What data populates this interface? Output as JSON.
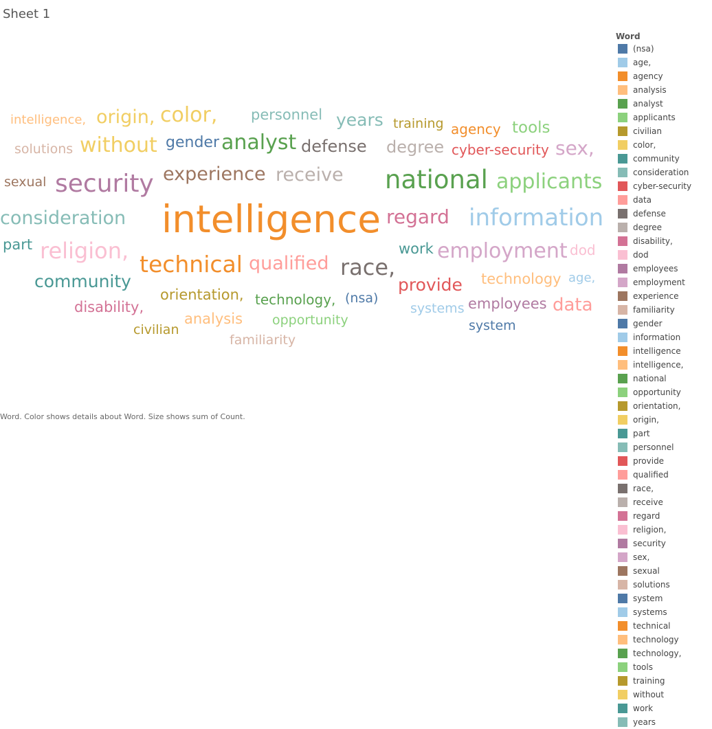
{
  "sheet_title": "Sheet 1",
  "caption": "Word.  Color shows details about Word.  Size shows sum of Count.",
  "chart_data": {
    "type": "word_cloud",
    "legend": {
      "title": "Word",
      "placement": "right",
      "items": [
        {
          "label": "(nsa)",
          "color": "#4e79a7"
        },
        {
          "label": "age,",
          "color": "#a0cbe8"
        },
        {
          "label": "agency",
          "color": "#f28e2b"
        },
        {
          "label": "analysis",
          "color": "#ffbe7d"
        },
        {
          "label": "analyst",
          "color": "#59a14f"
        },
        {
          "label": "applicants",
          "color": "#8cd17d"
        },
        {
          "label": "civilian",
          "color": "#b6992d"
        },
        {
          "label": "color,",
          "color": "#f1ce63"
        },
        {
          "label": "community",
          "color": "#499894"
        },
        {
          "label": "consideration",
          "color": "#86bcb6"
        },
        {
          "label": "cyber-security",
          "color": "#e15759"
        },
        {
          "label": "data",
          "color": "#ff9d9a"
        },
        {
          "label": "defense",
          "color": "#79706e"
        },
        {
          "label": "degree",
          "color": "#bab0ac"
        },
        {
          "label": "disability,",
          "color": "#d37295"
        },
        {
          "label": "dod",
          "color": "#fabfd2"
        },
        {
          "label": "employees",
          "color": "#b07aa1"
        },
        {
          "label": "employment",
          "color": "#d4a6c8"
        },
        {
          "label": "experience",
          "color": "#9d7660"
        },
        {
          "label": "familiarity",
          "color": "#d7b5a6"
        },
        {
          "label": "gender",
          "color": "#4e79a7"
        },
        {
          "label": "information",
          "color": "#a0cbe8"
        },
        {
          "label": "intelligence",
          "color": "#f28e2b"
        },
        {
          "label": "intelligence,",
          "color": "#ffbe7d"
        },
        {
          "label": "national",
          "color": "#59a14f"
        },
        {
          "label": "opportunity",
          "color": "#8cd17d"
        },
        {
          "label": "orientation,",
          "color": "#b6992d"
        },
        {
          "label": "origin,",
          "color": "#f1ce63"
        },
        {
          "label": "part",
          "color": "#499894"
        },
        {
          "label": "personnel",
          "color": "#86bcb6"
        },
        {
          "label": "provide",
          "color": "#e15759"
        },
        {
          "label": "qualified",
          "color": "#ff9d9a"
        },
        {
          "label": "race,",
          "color": "#79706e"
        },
        {
          "label": "receive",
          "color": "#bab0ac"
        },
        {
          "label": "regard",
          "color": "#d37295"
        },
        {
          "label": "religion,",
          "color": "#fabfd2"
        },
        {
          "label": "security",
          "color": "#b07aa1"
        },
        {
          "label": "sex,",
          "color": "#d4a6c8"
        },
        {
          "label": "sexual",
          "color": "#9d7660"
        },
        {
          "label": "solutions",
          "color": "#d7b5a6"
        },
        {
          "label": "system",
          "color": "#4e79a7"
        },
        {
          "label": "systems",
          "color": "#a0cbe8"
        },
        {
          "label": "technical",
          "color": "#f28e2b"
        },
        {
          "label": "technology",
          "color": "#ffbe7d"
        },
        {
          "label": "technology,",
          "color": "#59a14f"
        },
        {
          "label": "tools",
          "color": "#8cd17d"
        },
        {
          "label": "training",
          "color": "#b6992d"
        },
        {
          "label": "without",
          "color": "#f1ce63"
        },
        {
          "label": "work",
          "color": "#499894"
        },
        {
          "label": "years",
          "color": "#86bcb6"
        }
      ]
    },
    "words": [
      {
        "text": "intelligence",
        "color": "#f28e2b"
      },
      {
        "text": "national",
        "color": "#59a14f"
      },
      {
        "text": "information",
        "color": "#a0cbe8"
      },
      {
        "text": "security",
        "color": "#b07aa1"
      },
      {
        "text": "applicants",
        "color": "#8cd17d"
      },
      {
        "text": "technical",
        "color": "#f28e2b"
      },
      {
        "text": "employment",
        "color": "#d4a6c8"
      },
      {
        "text": "race,",
        "color": "#79706e"
      },
      {
        "text": "religion,",
        "color": "#fabfd2"
      },
      {
        "text": "consideration",
        "color": "#86bcb6"
      },
      {
        "text": "analyst",
        "color": "#59a14f"
      },
      {
        "text": "regard",
        "color": "#d37295"
      },
      {
        "text": "without",
        "color": "#f1ce63"
      },
      {
        "text": "color,",
        "color": "#f1ce63"
      },
      {
        "text": "sex,",
        "color": "#d4a6c8"
      },
      {
        "text": "qualified",
        "color": "#ff9d9a"
      },
      {
        "text": "experience",
        "color": "#9d7660"
      },
      {
        "text": "receive",
        "color": "#bab0ac"
      },
      {
        "text": "community",
        "color": "#499894"
      },
      {
        "text": "origin,",
        "color": "#f1ce63"
      },
      {
        "text": "defense",
        "color": "#79706e"
      },
      {
        "text": "degree",
        "color": "#bab0ac"
      },
      {
        "text": "provide",
        "color": "#e15759"
      },
      {
        "text": "data",
        "color": "#ff9d9a"
      },
      {
        "text": "years",
        "color": "#86bcb6"
      },
      {
        "text": "disability,",
        "color": "#d37295"
      },
      {
        "text": "technology",
        "color": "#ffbe7d"
      },
      {
        "text": "employees",
        "color": "#b07aa1"
      },
      {
        "text": "orientation,",
        "color": "#b6992d"
      },
      {
        "text": "part",
        "color": "#499894"
      },
      {
        "text": "personnel",
        "color": "#86bcb6"
      },
      {
        "text": "tools",
        "color": "#8cd17d"
      },
      {
        "text": "agency",
        "color": "#f28e2b"
      },
      {
        "text": "gender",
        "color": "#4e79a7"
      },
      {
        "text": "technology,",
        "color": "#59a14f"
      },
      {
        "text": "analysis",
        "color": "#ffbe7d"
      },
      {
        "text": "cyber-security",
        "color": "#e15759"
      },
      {
        "text": "solutions",
        "color": "#d7b5a6"
      },
      {
        "text": "intelligence,",
        "color": "#ffbe7d"
      },
      {
        "text": "training",
        "color": "#b6992d"
      },
      {
        "text": "sexual",
        "color": "#9d7660"
      },
      {
        "text": "work",
        "color": "#499894"
      },
      {
        "text": "dod",
        "color": "#fabfd2"
      },
      {
        "text": "age,",
        "color": "#a0cbe8"
      },
      {
        "text": "(nsa)",
        "color": "#4e79a7"
      },
      {
        "text": "systems",
        "color": "#a0cbe8"
      },
      {
        "text": "system",
        "color": "#4e79a7"
      },
      {
        "text": "opportunity",
        "color": "#8cd17d"
      },
      {
        "text": "civilian",
        "color": "#b6992d"
      },
      {
        "text": "familiarity",
        "color": "#d7b5a6"
      }
    ]
  }
}
